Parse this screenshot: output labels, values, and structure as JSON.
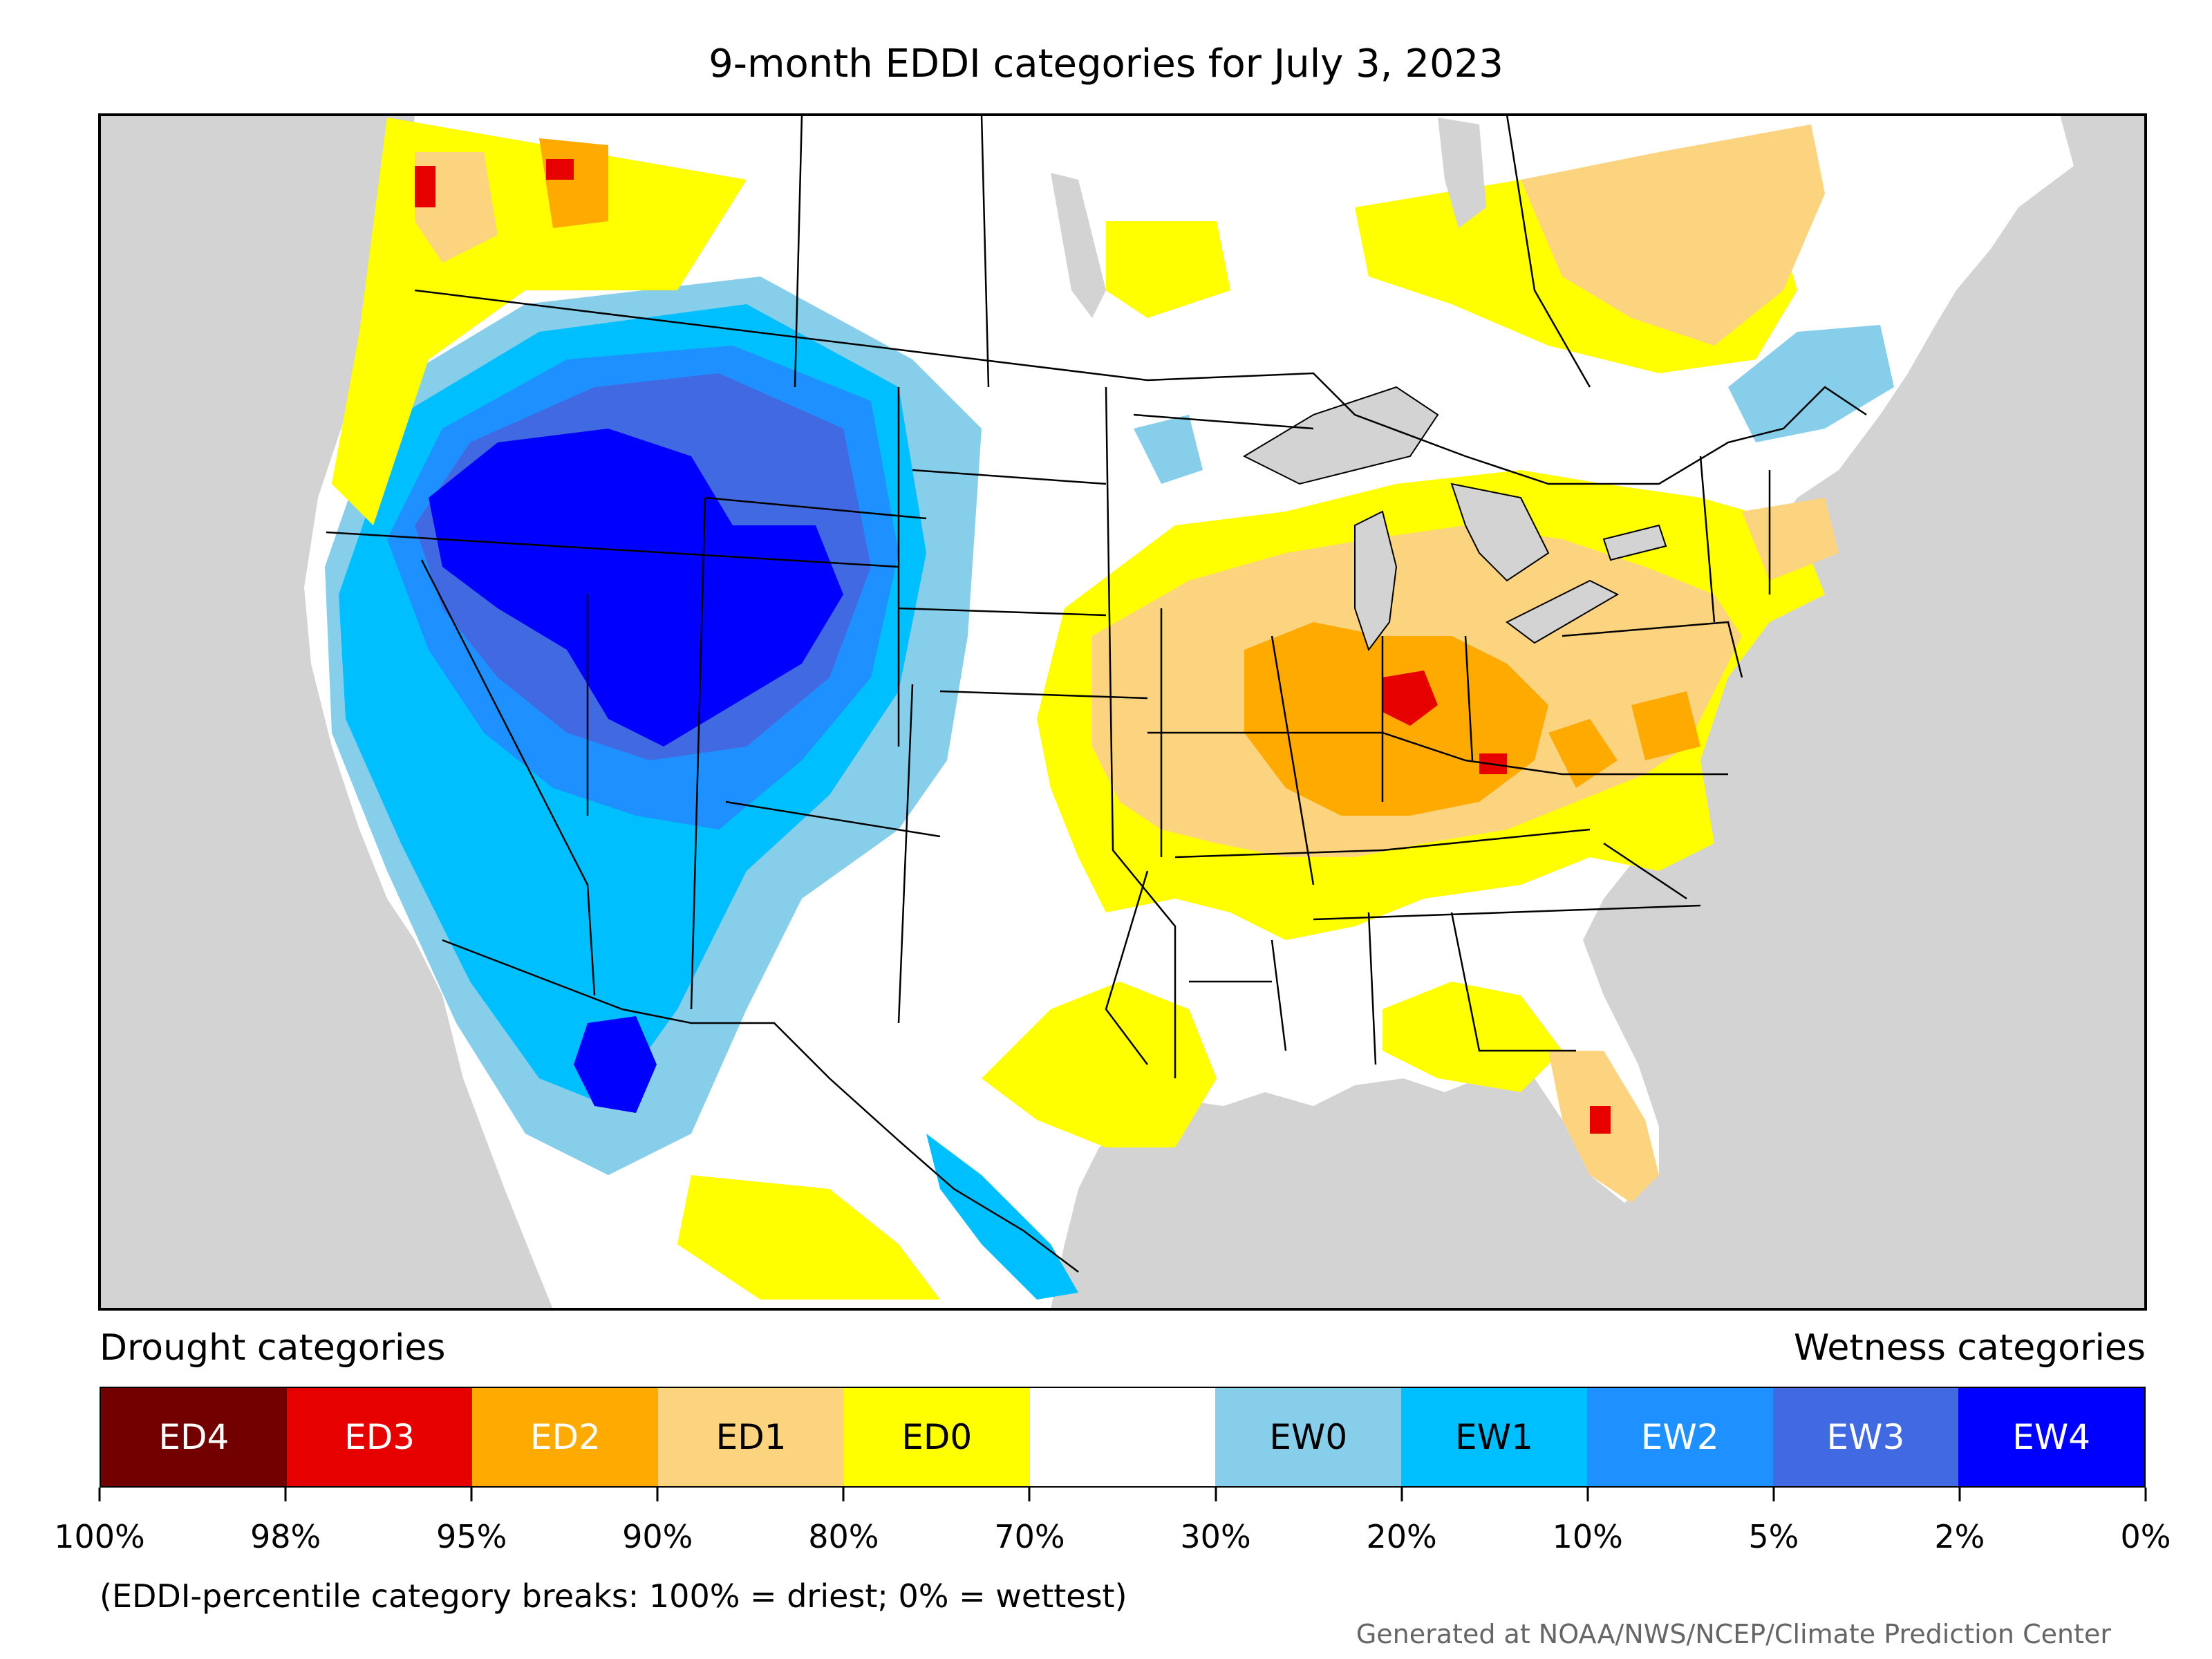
{
  "title": "9-month EDDI categories for July 3, 2023",
  "map": {
    "region": "Contiguous United States",
    "colors": {
      "ocean_and_outside": "#d3d3d3",
      "land_neutral": "#ffffff",
      "borders": "#000000"
    }
  },
  "legend": {
    "left_heading": "Drought categories",
    "right_heading": "Wetness categories",
    "categories": [
      {
        "label": "ED4",
        "color": "#730000",
        "text_color": "#ffffff"
      },
      {
        "label": "ED3",
        "color": "#e60000",
        "text_color": "#ffffff"
      },
      {
        "label": "ED2",
        "color": "#ffaa00",
        "text_color": "#ffffff"
      },
      {
        "label": "ED1",
        "color": "#fcd37f",
        "text_color": "#000000"
      },
      {
        "label": "ED0",
        "color": "#ffff00",
        "text_color": "#000000"
      },
      {
        "label": "",
        "color": "#ffffff",
        "text_color": "#000000"
      },
      {
        "label": "EW0",
        "color": "#87ceeb",
        "text_color": "#000000"
      },
      {
        "label": "EW1",
        "color": "#00bfff",
        "text_color": "#000000"
      },
      {
        "label": "EW2",
        "color": "#1e90ff",
        "text_color": "#ffffff"
      },
      {
        "label": "EW3",
        "color": "#4169e1",
        "text_color": "#ffffff"
      },
      {
        "label": "EW4",
        "color": "#0000ff",
        "text_color": "#ffffff"
      }
    ],
    "ticks": [
      "100%",
      "98%",
      "95%",
      "90%",
      "80%",
      "70%",
      "30%",
      "20%",
      "10%",
      "5%",
      "2%",
      "0%"
    ]
  },
  "note": "(EDDI-percentile category breaks: 100% = driest; 0% = wettest)",
  "credit": "Generated at NOAA/NWS/NCEP/Climate Prediction Center"
}
